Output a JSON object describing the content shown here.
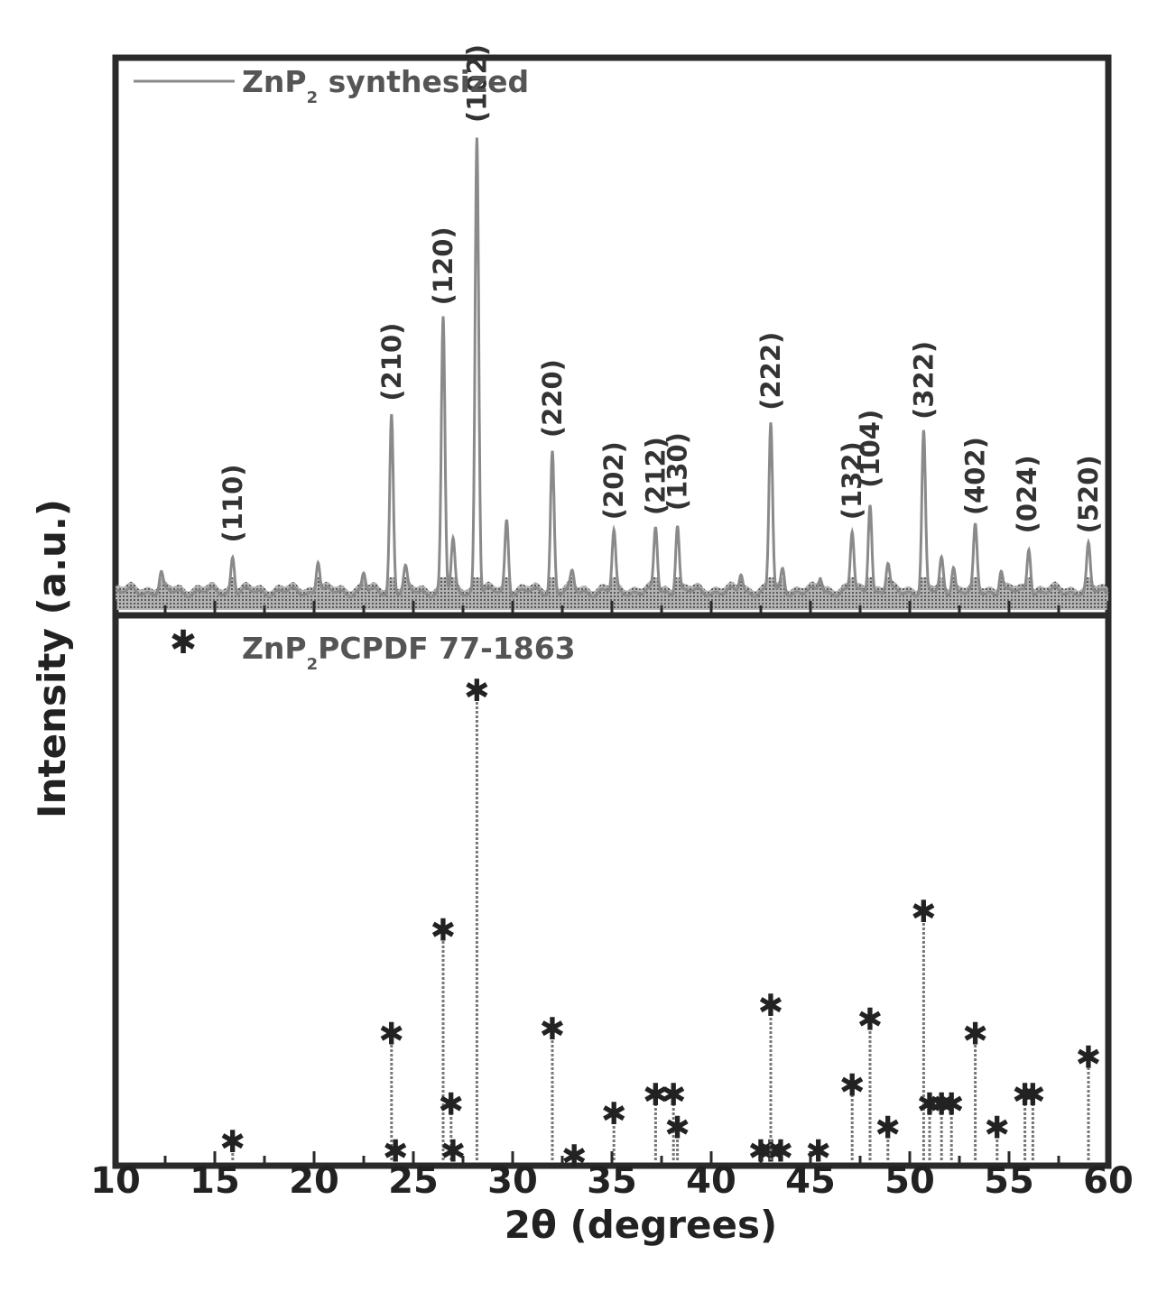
{
  "chart_data": {
    "type": "line",
    "xlabel": "2θ (degrees)",
    "ylabel": "Intensity (a.u.)",
    "xlim": [
      10,
      60
    ],
    "xticks": [
      "10",
      "15",
      "20",
      "25",
      "30",
      "35",
      "40",
      "45",
      "50",
      "55",
      "60"
    ],
    "grid": false,
    "legend_position": "top-left",
    "colors": {
      "frame": "#2a2a2a",
      "trace": "#8a8a8a",
      "marker": "#222222",
      "stem": "#777777"
    },
    "top_panel": {
      "legend": {
        "prefix": "ZnP",
        "sub": "2",
        "suffix": " synthesized"
      },
      "series_name": "ZnP2 synthesized",
      "peaks": [
        {
          "x": 12.3,
          "y": 4
        },
        {
          "x": 15.9,
          "y": 8
        },
        {
          "x": 20.2,
          "y": 7
        },
        {
          "x": 22.5,
          "y": 4
        },
        {
          "x": 23.9,
          "y": 39
        },
        {
          "x": 24.6,
          "y": 5
        },
        {
          "x": 26.5,
          "y": 60
        },
        {
          "x": 27.0,
          "y": 11
        },
        {
          "x": 28.2,
          "y": 100
        },
        {
          "x": 29.7,
          "y": 16
        },
        {
          "x": 32.0,
          "y": 31
        },
        {
          "x": 33.0,
          "y": 4
        },
        {
          "x": 35.1,
          "y": 13
        },
        {
          "x": 37.2,
          "y": 14
        },
        {
          "x": 38.3,
          "y": 15
        },
        {
          "x": 41.5,
          "y": 4
        },
        {
          "x": 43.0,
          "y": 37
        },
        {
          "x": 43.6,
          "y": 5
        },
        {
          "x": 45.5,
          "y": 3
        },
        {
          "x": 47.1,
          "y": 13
        },
        {
          "x": 48.0,
          "y": 20
        },
        {
          "x": 48.9,
          "y": 6
        },
        {
          "x": 50.7,
          "y": 35
        },
        {
          "x": 51.6,
          "y": 7
        },
        {
          "x": 52.2,
          "y": 6
        },
        {
          "x": 53.3,
          "y": 14
        },
        {
          "x": 54.6,
          "y": 5
        },
        {
          "x": 56.0,
          "y": 10
        },
        {
          "x": 59.0,
          "y": 10
        }
      ],
      "peak_labels": [
        {
          "x": 15.9,
          "text": "(110)"
        },
        {
          "x": 23.9,
          "text": "(210)"
        },
        {
          "x": 26.5,
          "text": "(120)"
        },
        {
          "x": 28.2,
          "text": "(102)"
        },
        {
          "x": 32.0,
          "text": "(220)"
        },
        {
          "x": 35.1,
          "text": "(202)"
        },
        {
          "x": 37.2,
          "text": "(212)"
        },
        {
          "x": 38.3,
          "text": "(130)"
        },
        {
          "x": 43.0,
          "text": "(222)"
        },
        {
          "x": 47.1,
          "text": "(132)"
        },
        {
          "x": 48.0,
          "text": "(104)"
        },
        {
          "x": 50.7,
          "text": "(322)"
        },
        {
          "x": 53.3,
          "text": "(402)"
        },
        {
          "x": 55.9,
          "text": "(024)"
        },
        {
          "x": 59.0,
          "text": "(520)"
        }
      ]
    },
    "bottom_panel": {
      "legend": {
        "prefix": "ZnP",
        "sub": "2",
        "suffix": "PCPDF 77-1863"
      },
      "series_name": "ZnP2 PCPDF 77-1863",
      "sticks": [
        {
          "x": 15.9,
          "y": 4
        },
        {
          "x": 23.9,
          "y": 27
        },
        {
          "x": 24.1,
          "y": 2
        },
        {
          "x": 26.5,
          "y": 49
        },
        {
          "x": 26.9,
          "y": 12
        },
        {
          "x": 27.0,
          "y": 2
        },
        {
          "x": 28.2,
          "y": 100
        },
        {
          "x": 32.0,
          "y": 28
        },
        {
          "x": 33.1,
          "y": 1
        },
        {
          "x": 35.1,
          "y": 10
        },
        {
          "x": 37.2,
          "y": 14
        },
        {
          "x": 38.1,
          "y": 14
        },
        {
          "x": 38.3,
          "y": 7
        },
        {
          "x": 42.5,
          "y": 2
        },
        {
          "x": 43.0,
          "y": 2
        },
        {
          "x": 43.0,
          "y": 33
        },
        {
          "x": 43.5,
          "y": 2
        },
        {
          "x": 45.4,
          "y": 2
        },
        {
          "x": 47.1,
          "y": 16
        },
        {
          "x": 48.0,
          "y": 30
        },
        {
          "x": 48.9,
          "y": 7
        },
        {
          "x": 50.7,
          "y": 53
        },
        {
          "x": 51.0,
          "y": 12
        },
        {
          "x": 51.6,
          "y": 12
        },
        {
          "x": 52.1,
          "y": 12
        },
        {
          "x": 53.3,
          "y": 27
        },
        {
          "x": 54.4,
          "y": 7
        },
        {
          "x": 55.8,
          "y": 14
        },
        {
          "x": 56.2,
          "y": 14
        },
        {
          "x": 59.0,
          "y": 22
        }
      ]
    }
  }
}
